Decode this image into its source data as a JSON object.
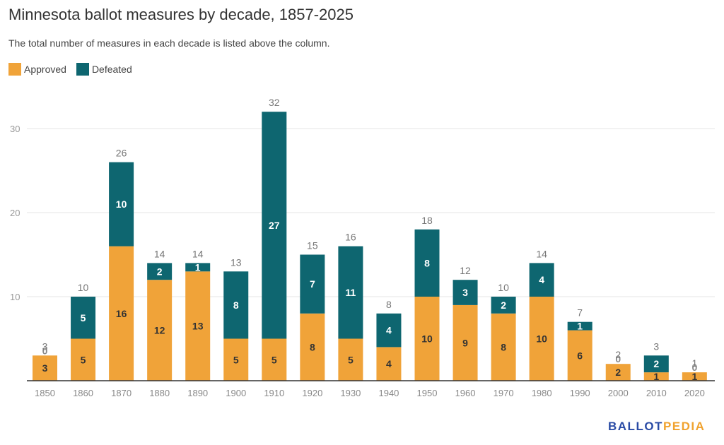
{
  "header": {
    "title": "Minnesota ballot measures by decade, 1857-2025",
    "subtitle": "The total number of measures in each decade is listed above the column."
  },
  "legend": [
    {
      "label": "Approved",
      "color": "#f0a339"
    },
    {
      "label": "Defeated",
      "color": "#0e6670"
    }
  ],
  "logo": {
    "part1": "BALLOT",
    "part2": "PEDIA"
  },
  "chart_data": {
    "type": "bar",
    "stacked": true,
    "title": "Minnesota ballot measures by decade, 1857-2025",
    "subtitle": "The total number of measures in each decade is listed above the column.",
    "xlabel": "",
    "ylabel": "",
    "ylim": [
      0,
      32
    ],
    "yticks": [
      10,
      20,
      30
    ],
    "grid": true,
    "legend_position": "top-left",
    "categories": [
      "1850",
      "1860",
      "1870",
      "1880",
      "1890",
      "1900",
      "1910",
      "1920",
      "1930",
      "1940",
      "1950",
      "1960",
      "1970",
      "1980",
      "1990",
      "2000",
      "2010",
      "2020"
    ],
    "series": [
      {
        "name": "Approved",
        "color": "#f0a339",
        "values": [
          3,
          5,
          16,
          12,
          13,
          5,
          5,
          8,
          5,
          4,
          10,
          9,
          8,
          10,
          6,
          2,
          1,
          1
        ]
      },
      {
        "name": "Defeated",
        "color": "#0e6670",
        "values": [
          0,
          5,
          10,
          2,
          1,
          8,
          27,
          7,
          11,
          4,
          8,
          3,
          2,
          4,
          1,
          0,
          2,
          0
        ]
      }
    ],
    "totals": [
      3,
      10,
      26,
      14,
      14,
      13,
      32,
      15,
      16,
      8,
      18,
      12,
      10,
      14,
      7,
      2,
      3,
      1
    ]
  }
}
